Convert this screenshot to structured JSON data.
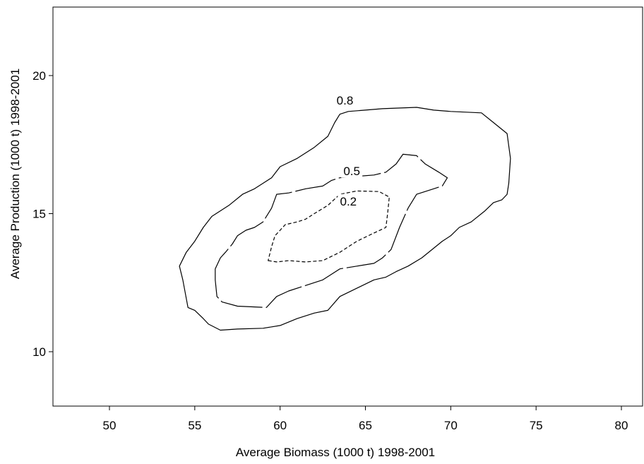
{
  "chart_data": {
    "type": "contour",
    "title": "",
    "xlabel": "Average Biomass (1000 t) 1998-2001",
    "ylabel": "Average Production (1000 t) 1998-2001",
    "xlim": [
      47,
      82
    ],
    "ylim": [
      8,
      22.5
    ],
    "xticks": [
      50,
      55,
      60,
      65,
      70,
      75,
      80
    ],
    "yticks": [
      10,
      15,
      20
    ],
    "grid": false,
    "legend": "none",
    "contours": [
      {
        "level": "0.8",
        "label_at": [
          63.8,
          18.95
        ],
        "style": "solid",
        "points": [
          [
            54.1,
            13.1
          ],
          [
            54.3,
            12.6
          ],
          [
            54.6,
            11.6
          ],
          [
            55.0,
            11.5
          ],
          [
            55.5,
            11.2
          ],
          [
            55.8,
            11.0
          ],
          [
            56.5,
            10.78
          ],
          [
            57.5,
            10.82
          ],
          [
            59.0,
            10.85
          ],
          [
            60.0,
            10.95
          ],
          [
            61.0,
            11.2
          ],
          [
            62.0,
            11.4
          ],
          [
            62.8,
            11.5
          ],
          [
            63.5,
            12.0
          ],
          [
            64.5,
            12.3
          ],
          [
            65.5,
            12.6
          ],
          [
            66.2,
            12.7
          ],
          [
            66.8,
            12.9
          ],
          [
            67.5,
            13.1
          ],
          [
            68.3,
            13.4
          ],
          [
            69.5,
            14.0
          ],
          [
            70.0,
            14.2
          ],
          [
            70.5,
            14.5
          ],
          [
            71.2,
            14.7
          ],
          [
            72.0,
            15.1
          ],
          [
            72.5,
            15.4
          ],
          [
            73.0,
            15.5
          ],
          [
            73.3,
            15.7
          ],
          [
            73.4,
            16.1
          ],
          [
            73.5,
            17.0
          ],
          [
            73.3,
            17.9
          ],
          [
            72.5,
            18.3
          ],
          [
            71.8,
            18.65
          ],
          [
            70.0,
            18.7
          ],
          [
            69.0,
            18.75
          ],
          [
            68.0,
            18.85
          ],
          [
            66.0,
            18.8
          ],
          [
            65.0,
            18.75
          ],
          [
            64.0,
            18.7
          ],
          [
            63.5,
            18.6
          ],
          [
            63.2,
            18.3
          ],
          [
            62.8,
            17.8
          ],
          [
            62.0,
            17.4
          ],
          [
            61.0,
            17.0
          ],
          [
            60.0,
            16.7
          ],
          [
            59.5,
            16.3
          ],
          [
            59.0,
            16.1
          ],
          [
            58.5,
            15.9
          ],
          [
            57.8,
            15.7
          ],
          [
            57.0,
            15.3
          ],
          [
            56.0,
            14.9
          ],
          [
            55.5,
            14.5
          ],
          [
            55.0,
            14.0
          ],
          [
            54.5,
            13.6
          ],
          [
            54.1,
            13.1
          ]
        ]
      },
      {
        "level": "0.5",
        "label_at": [
          64.2,
          16.4
        ],
        "style": "long-dash",
        "points": [
          [
            56.5,
            13.4
          ],
          [
            56.2,
            13.0
          ],
          [
            56.2,
            12.6
          ],
          [
            56.3,
            12.0
          ],
          [
            56.6,
            11.8
          ],
          [
            57.5,
            11.65
          ],
          [
            59.2,
            11.6
          ],
          [
            59.8,
            12.0
          ],
          [
            60.5,
            12.2
          ],
          [
            61.5,
            12.4
          ],
          [
            62.5,
            12.6
          ],
          [
            63.0,
            12.8
          ],
          [
            63.5,
            13.0
          ],
          [
            64.5,
            13.1
          ],
          [
            65.5,
            13.2
          ],
          [
            66.0,
            13.4
          ],
          [
            66.5,
            13.7
          ],
          [
            67.0,
            14.5
          ],
          [
            67.5,
            15.2
          ],
          [
            68.0,
            15.7
          ],
          [
            68.5,
            15.8
          ],
          [
            69.0,
            15.9
          ],
          [
            69.5,
            16.0
          ],
          [
            69.8,
            16.3
          ],
          [
            69.3,
            16.5
          ],
          [
            68.5,
            16.8
          ],
          [
            68.0,
            17.1
          ],
          [
            67.2,
            17.15
          ],
          [
            66.8,
            16.8
          ],
          [
            66.2,
            16.5
          ],
          [
            65.5,
            16.4
          ],
          [
            64.5,
            16.35
          ],
          [
            63.5,
            16.3
          ],
          [
            63.0,
            16.2
          ],
          [
            62.5,
            16.0
          ],
          [
            61.5,
            15.9
          ],
          [
            60.5,
            15.75
          ],
          [
            59.8,
            15.7
          ],
          [
            59.5,
            15.2
          ],
          [
            59.0,
            14.7
          ],
          [
            58.5,
            14.5
          ],
          [
            58.0,
            14.4
          ],
          [
            57.5,
            14.2
          ],
          [
            57.2,
            13.9
          ],
          [
            56.8,
            13.6
          ],
          [
            56.5,
            13.4
          ]
        ]
      },
      {
        "level": "0.2",
        "label_at": [
          64.0,
          15.3
        ],
        "style": "short-dash",
        "points": [
          [
            59.3,
            13.3
          ],
          [
            59.8,
            13.25
          ],
          [
            60.5,
            13.3
          ],
          [
            61.5,
            13.25
          ],
          [
            62.5,
            13.3
          ],
          [
            63.5,
            13.6
          ],
          [
            64.5,
            14.0
          ],
          [
            65.5,
            14.3
          ],
          [
            66.2,
            14.5
          ],
          [
            66.3,
            15.0
          ],
          [
            66.4,
            15.6
          ],
          [
            65.8,
            15.8
          ],
          [
            64.5,
            15.82
          ],
          [
            63.5,
            15.7
          ],
          [
            62.8,
            15.3
          ],
          [
            62.0,
            15.0
          ],
          [
            61.5,
            14.8
          ],
          [
            61.0,
            14.7
          ],
          [
            60.3,
            14.6
          ],
          [
            60.0,
            14.4
          ],
          [
            59.7,
            14.2
          ],
          [
            59.5,
            13.8
          ],
          [
            59.3,
            13.3
          ]
        ]
      }
    ]
  }
}
